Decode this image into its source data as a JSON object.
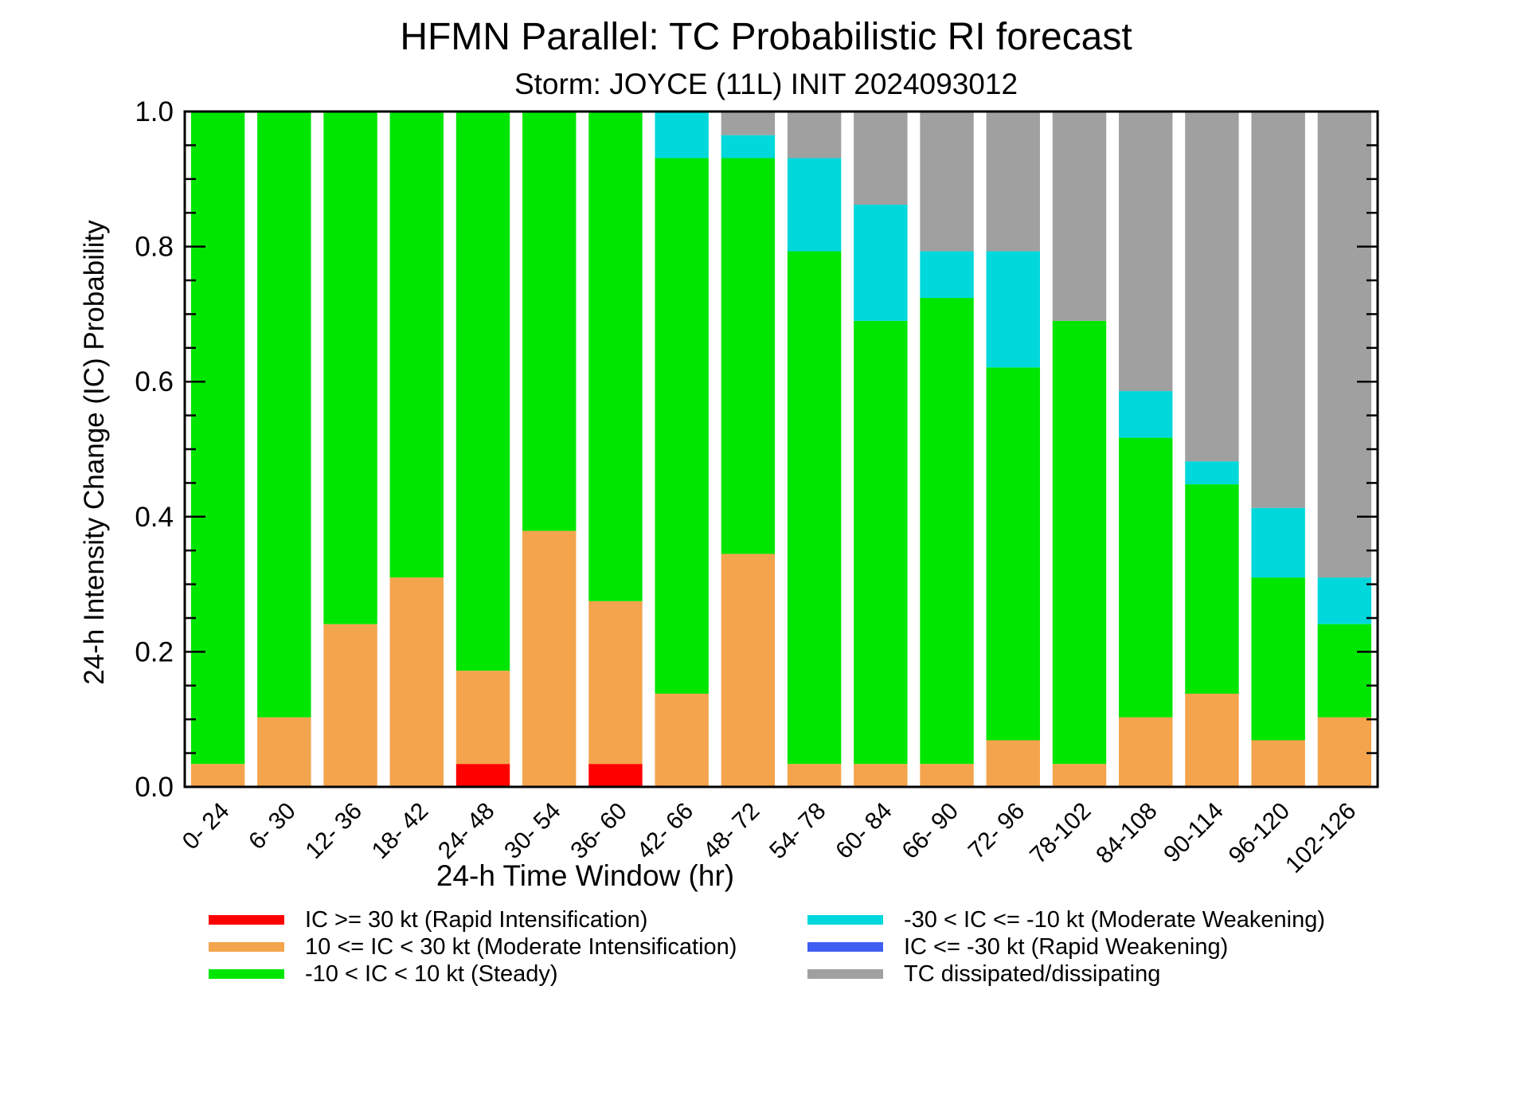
{
  "chart_data": {
    "type": "bar",
    "stacked": true,
    "title": "HFMN Parallel: TC Probabilistic RI forecast",
    "subtitle": "Storm: JOYCE (11L) INIT 2024093012",
    "xlabel": "24-h Time Window (hr)",
    "ylabel": "24-h Intensity Change (IC) Probability",
    "ylim": [
      0,
      1
    ],
    "yticks": [
      "0.0",
      "0.2",
      "0.4",
      "0.6",
      "0.8",
      "1.0"
    ],
    "categories": [
      "0- 24",
      "6- 30",
      "12- 36",
      "18- 42",
      "24- 48",
      "30- 54",
      "36- 60",
      "42- 66",
      "48- 72",
      "54- 78",
      "60- 84",
      "66- 90",
      "72- 96",
      "78-102",
      "84-108",
      "90-114",
      "96-120",
      "102-126"
    ],
    "series": [
      {
        "name": "IC >= 30 kt (Rapid Intensification)",
        "color": "#ff0000",
        "values": [
          0,
          0,
          0,
          0,
          0.034,
          0,
          0.034,
          0,
          0,
          0,
          0,
          0,
          0,
          0,
          0,
          0,
          0,
          0
        ]
      },
      {
        "name": "10 <= IC < 30 kt (Moderate Intensification)",
        "color": "#f4a44c",
        "values": [
          0.034,
          0.103,
          0.241,
          0.31,
          0.138,
          0.379,
          0.241,
          0.138,
          0.345,
          0.034,
          0.034,
          0.034,
          0.069,
          0.034,
          0.103,
          0.138,
          0.069,
          0.103
        ]
      },
      {
        "name": "-10 < IC < 10 kt (Steady)",
        "color": "#00e600",
        "values": [
          0.966,
          0.897,
          0.759,
          0.69,
          0.828,
          0.621,
          0.725,
          0.793,
          0.586,
          0.759,
          0.656,
          0.69,
          0.552,
          0.656,
          0.414,
          0.31,
          0.241,
          0.138
        ]
      },
      {
        "name": "-30 < IC <= -10 kt (Moderate Weakening)",
        "color": "#00d8dc",
        "values": [
          0,
          0,
          0,
          0,
          0,
          0,
          0,
          0.069,
          0.034,
          0.138,
          0.172,
          0.069,
          0.172,
          0,
          0.069,
          0.034,
          0.103,
          0.069
        ]
      },
      {
        "name": "IC <= -30 kt (Rapid Weakening)",
        "color": "#3e5ff2",
        "values": [
          0,
          0,
          0,
          0,
          0,
          0,
          0,
          0,
          0,
          0,
          0,
          0,
          0,
          0,
          0,
          0,
          0,
          0
        ]
      },
      {
        "name": "TC dissipated/dissipating",
        "color": "#a0a0a0",
        "values": [
          0,
          0,
          0,
          0,
          0,
          0,
          0,
          0,
          0.035,
          0.069,
          0.138,
          0.207,
          0.207,
          0.31,
          0.414,
          0.518,
          0.587,
          0.69
        ]
      }
    ],
    "grid": false,
    "legend_position": "bottom"
  }
}
